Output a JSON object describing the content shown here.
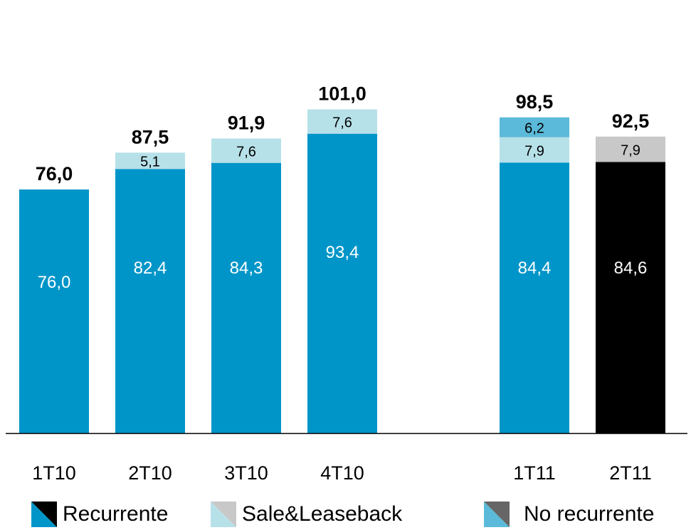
{
  "chart_data": {
    "type": "bar",
    "stacked": true,
    "categories": [
      "1T10",
      "2T10",
      "3T10",
      "4T10",
      "1T11",
      "2T11"
    ],
    "totals": [
      "76,0",
      "87,5",
      "91,9",
      "101,0",
      "98,5",
      "92,5"
    ],
    "stacks": [
      [
        {
          "value": 76.0,
          "label": "76,0",
          "color": "#0095C8",
          "text_color": "#ffffff"
        }
      ],
      [
        {
          "value": 82.4,
          "label": "82,4",
          "color": "#0095C8",
          "text_color": "#ffffff"
        },
        {
          "value": 5.1,
          "label": "5,1",
          "color": "#B7E1E9",
          "text_color": "#000000"
        }
      ],
      [
        {
          "value": 84.3,
          "label": "84,3",
          "color": "#0095C8",
          "text_color": "#ffffff"
        },
        {
          "value": 7.6,
          "label": "7,6",
          "color": "#B7E1E9",
          "text_color": "#000000"
        }
      ],
      [
        {
          "value": 93.4,
          "label": "93,4",
          "color": "#0095C8",
          "text_color": "#ffffff"
        },
        {
          "value": 7.6,
          "label": "7,6",
          "color": "#B7E1E9",
          "text_color": "#000000"
        }
      ],
      [
        {
          "value": 84.4,
          "label": "84,4",
          "color": "#0095C8",
          "text_color": "#ffffff"
        },
        {
          "value": 7.9,
          "label": "7,9",
          "color": "#B7E1E9",
          "text_color": "#000000"
        },
        {
          "value": 6.2,
          "label": "6,2",
          "color": "#5BBAD9",
          "text_color": "#000000"
        }
      ],
      [
        {
          "value": 84.6,
          "label": "84,6",
          "color": "#000000",
          "text_color": "#ffffff"
        },
        {
          "value": 7.9,
          "label": "7,9",
          "color": "#C8C8C8",
          "text_color": "#000000"
        }
      ]
    ],
    "ylim": [
      0,
      110
    ],
    "grid": false,
    "legend": {
      "placement": "bottom",
      "items": [
        {
          "label": "Recurrente",
          "color_a": "#0095C8",
          "color_b": "#000000"
        },
        {
          "label": "Sale&Leaseback",
          "color_a": "#B7E1E9",
          "color_b": "#C8C8C8"
        },
        {
          "label": "No recurrente",
          "color_a": "#5BBAD9",
          "color_b": "#666666"
        }
      ]
    }
  }
}
